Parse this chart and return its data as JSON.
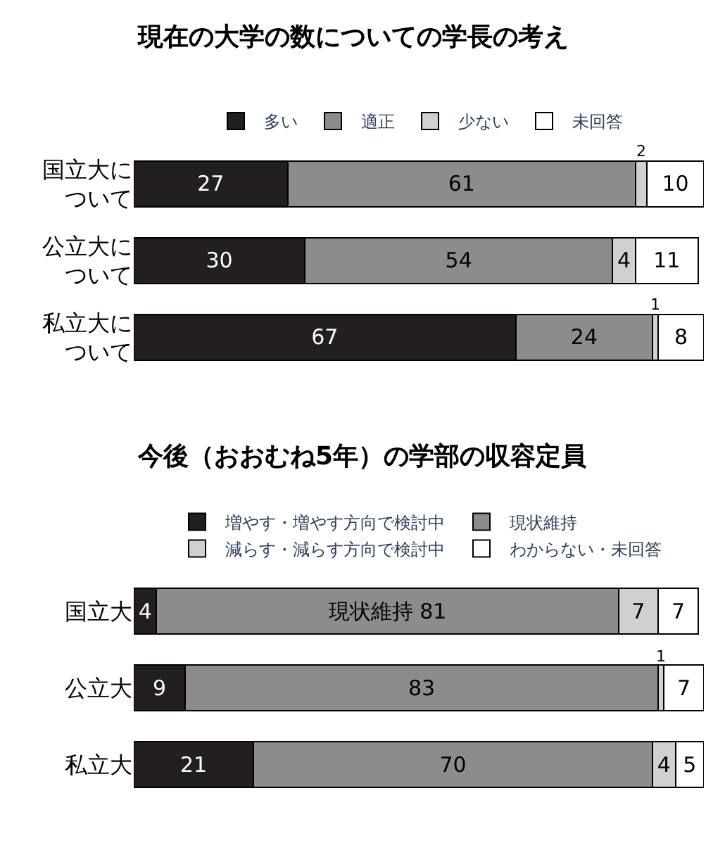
{
  "chart_data": [
    {
      "type": "bar",
      "orientation": "horizontal",
      "stacked": true,
      "title": "現在の大学の数についての学長の考え",
      "categories": [
        "国立大について",
        "公立大について",
        "私立大について"
      ],
      "xlim": [
        0,
        100
      ],
      "tick_labels": "y",
      "legend": "top",
      "data_labels": true,
      "series": [
        {
          "name": "多い",
          "color": "#231f20",
          "values": [
            27,
            30,
            67
          ]
        },
        {
          "name": "適正",
          "color": "#8c8c8c",
          "values": [
            61,
            54,
            24
          ]
        },
        {
          "name": "少ない",
          "color": "#d0d0d0",
          "values": [
            2,
            4,
            1
          ]
        },
        {
          "name": "未回答",
          "color": "#ffffff",
          "values": [
            10,
            11,
            8
          ]
        }
      ]
    },
    {
      "type": "bar",
      "orientation": "horizontal",
      "stacked": true,
      "title": "今後（おおむね5年）の学部の収容定員",
      "categories": [
        "国立大",
        "公立大",
        "私立大"
      ],
      "xlim": [
        0,
        100
      ],
      "tick_labels": "y",
      "legend": "top",
      "series": [
        {
          "name": "増やす・増やす方向で検討中",
          "color": "#231f20",
          "values": [
            4,
            9,
            21
          ],
          "value_labels": [
            "4",
            "9",
            "21"
          ]
        },
        {
          "name": "現状維持",
          "color": "#8c8c8c",
          "values": [
            81,
            83,
            70
          ],
          "value_labels": [
            "現状維持 81",
            "83",
            "70"
          ]
        },
        {
          "name": "減らす・減らす方向で検討中",
          "color": "#d0d0d0",
          "values": [
            7,
            1,
            4
          ],
          "value_labels": [
            "7",
            "1",
            "4"
          ]
        },
        {
          "name": "わからない・未回答",
          "color": "#ffffff",
          "values": [
            7,
            7,
            5
          ],
          "value_labels": [
            "7",
            "7",
            "5"
          ]
        }
      ]
    }
  ]
}
